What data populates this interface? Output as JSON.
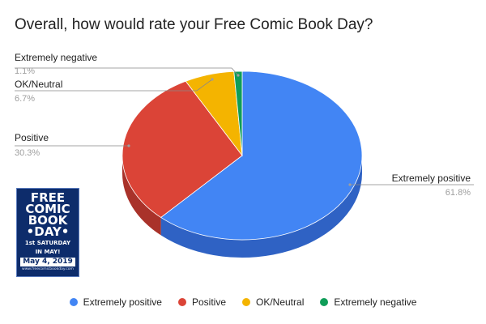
{
  "chart_data": {
    "type": "pie",
    "title": "Overall, how would rate your Free Comic Book Day?",
    "three_d": true,
    "legend_position": "bottom",
    "slices": [
      {
        "name": "Extremely positive",
        "value": 61.8,
        "label": "61.8%",
        "color": "#4285f4",
        "side_color": "#2f62c4"
      },
      {
        "name": "Positive",
        "value": 30.3,
        "label": "30.3%",
        "color": "#db4437",
        "side_color": "#a9322a"
      },
      {
        "name": "OK/Neutral",
        "value": 6.7,
        "label": "6.7%",
        "color": "#f4b400",
        "side_color": "#b88700"
      },
      {
        "name": "Extremely negative",
        "value": 1.1,
        "label": "1.1%",
        "color": "#0f9d58",
        "side_color": "#0b7341"
      }
    ]
  },
  "logo": {
    "line1": "FREE",
    "line2": "COMIC",
    "line3": "BOOK",
    "line4": "•DAY•",
    "tagline1": "1st SATURDAY",
    "tagline2": "IN MAY!",
    "date": "May 4, 2019",
    "url": "www.freecomicbookday.com"
  }
}
